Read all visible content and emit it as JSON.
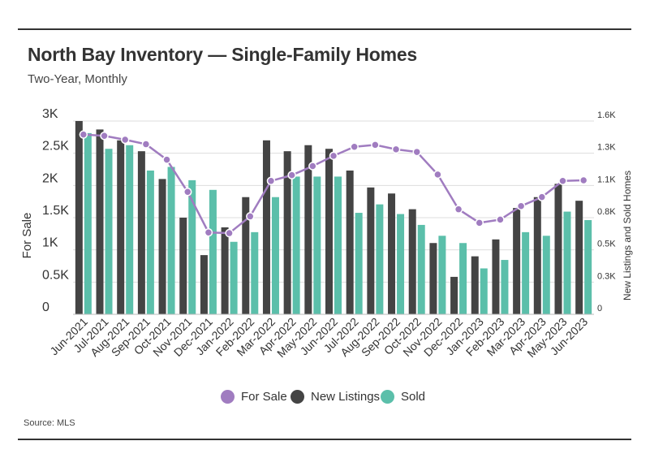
{
  "header": {
    "title": "North Bay Inventory — Single-Family Homes",
    "subtitle": "Two-Year, Monthly"
  },
  "footer": {
    "source": "Source: MLS"
  },
  "colors": {
    "for_sale": "#a07cc0",
    "new_listings": "#444444",
    "sold": "#5bbfaa",
    "grid": "#dddddd"
  },
  "legend": [
    {
      "label": "For Sale",
      "color": "#a07cc0"
    },
    {
      "label": "New Listings",
      "color": "#444444"
    },
    {
      "label": "Sold",
      "color": "#5bbfaa"
    }
  ],
  "chart_data": {
    "type": "bar",
    "categories": [
      "Jun-2021",
      "Jul-2021",
      "Aug-2021",
      "Sep-2021",
      "Oct-2021",
      "Nov-2021",
      "Dec-2021",
      "Jan-2022",
      "Feb-2022",
      "Mar-2022",
      "Apr-2022",
      "May-2022",
      "Jun-2022",
      "Jul-2022",
      "Aug-2022",
      "Sep-2022",
      "Oct-2022",
      "Nov-2022",
      "Dec-2022",
      "Jan-2023",
      "Feb-2023",
      "Mar-2023",
      "Apr-2023",
      "May-2023",
      "Jun-2023"
    ],
    "series": [
      {
        "name": "For Sale",
        "type": "line",
        "axis": "left",
        "values": [
          2790,
          2770,
          2710,
          2640,
          2400,
          1900,
          1270,
          1260,
          1520,
          2070,
          2160,
          2300,
          2460,
          2600,
          2630,
          2560,
          2520,
          2170,
          1630,
          1420,
          1470,
          1680,
          1820,
          2070,
          2080
        ]
      },
      {
        "name": "New Listings",
        "type": "bar",
        "axis": "right",
        "values": [
          1600,
          1530,
          1440,
          1350,
          1120,
          800,
          490,
          720,
          970,
          1440,
          1350,
          1400,
          1370,
          1190,
          1050,
          1000,
          870,
          590,
          310,
          480,
          620,
          880,
          970,
          1080,
          940
        ]
      },
      {
        "name": "Sold",
        "type": "bar",
        "axis": "right",
        "values": [
          1500,
          1370,
          1400,
          1190,
          1220,
          1110,
          1030,
          600,
          680,
          970,
          1140,
          1140,
          1140,
          840,
          910,
          830,
          740,
          650,
          590,
          380,
          450,
          680,
          650,
          850,
          780
        ]
      }
    ],
    "ylabel": "For Sale",
    "y2label": "New Listings and Sold Homes",
    "ylim": [
      0,
      3000
    ],
    "y2lim": [
      0,
      1600
    ],
    "yticks": [
      "0",
      "0.5K",
      "1K",
      "1.5K",
      "2K",
      "2.5K",
      "3K"
    ],
    "y2ticks": [
      "0",
      "0.3K",
      "0.5K",
      "0.8K",
      "1.1K",
      "1.3K",
      "1.6K"
    ],
    "grid": true,
    "legend_position": "bottom"
  }
}
